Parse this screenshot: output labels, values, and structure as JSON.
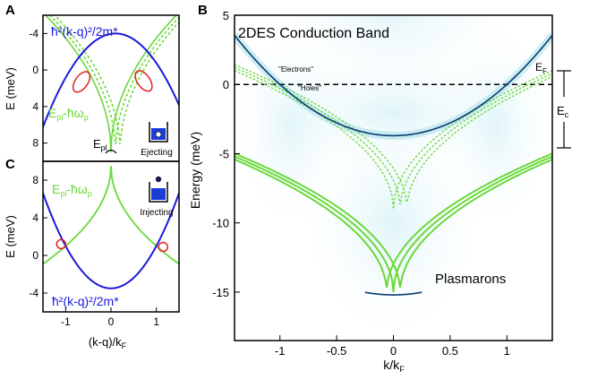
{
  "figure": {
    "panelA": {
      "letter": "A",
      "ylabel": "E (meV)",
      "yticks": [
        "-4",
        "0",
        "4",
        "8"
      ],
      "parabola_label": "ħ²(k-q)²/2m*",
      "plasmon_label": "E",
      "plasmon_sub_pl": "pl",
      "plasmon_label_mid": "-ħω",
      "plasmon_sub_p": "p",
      "epl_label": "E",
      "epl_sub": "pl",
      "inset_label": "Ejecting"
    },
    "panelC": {
      "letter": "C",
      "ylabel": "E (meV)",
      "yticks": [
        "8",
        "4",
        "0",
        "-4"
      ],
      "xticks": [
        "-1",
        "0",
        "1"
      ],
      "xlabel": "(k-q)/k",
      "xlabel_sub": "F",
      "parabola_label": "ħ²(k-q)²/2m*",
      "plasmon_label": "E",
      "plasmon_sub_pl": "pl",
      "plasmon_label_mid": "-ħω",
      "plasmon_sub_p": "p",
      "inset_label": "Injecting"
    },
    "panelB": {
      "letter": "B",
      "title": "2DES Conduction Band",
      "ylabel": "Energy (meV)",
      "yticks": [
        "5",
        "0",
        "-5",
        "-10",
        "-15"
      ],
      "xticks": [
        "-1",
        "-0.5",
        "0",
        "0.5",
        "1"
      ],
      "xlabel": "k/k",
      "xlabel_sub": "F",
      "electrons_label": "\"Electrons\"",
      "holes_label": "\"Holes\"",
      "ef_label": "E",
      "ef_sub": "F",
      "ec_label": "E",
      "ec_sub": "c",
      "plasmarons_label": "Plasmarons"
    }
  },
  "colors": {
    "parabola": "#1a1adc",
    "plasmon": "#6ad83a",
    "circle": "#e02020",
    "band": "#0a3a70",
    "glow": "#9fdde8",
    "inset_fill": "#1a3cd8"
  },
  "chart_data": [
    {
      "type": "line",
      "panel": "A",
      "ylabel": "E (meV)",
      "ylim": [
        10,
        -6
      ],
      "xlim": [
        -1.5,
        1.5
      ],
      "series": [
        {
          "name": "ħ²(k-q)²/2m*",
          "function": "E = 4(x-q)^2 - 4",
          "q": 0.1
        },
        {
          "name": "Epl-ħωp (solid)",
          "function": "E = 9 - 12.5*sqrt(|x|)"
        },
        {
          "name": "Epl-ħωp (dashed)",
          "shifts": [
            0.1,
            0.2
          ]
        }
      ],
      "crossings_marked": 2
    },
    {
      "type": "line",
      "panel": "C",
      "ylabel": "E (meV)",
      "xlabel": "(k-q)/kF",
      "ylim": [
        -6,
        10
      ],
      "xlim": [
        -1.5,
        1.5
      ],
      "xticks": [
        -1,
        0,
        1
      ],
      "yticks": [
        8,
        4,
        0,
        -4
      ],
      "series": [
        {
          "name": "ħ²(k-q)²/2m*",
          "function": "E = 4.5x^2 - 3.5"
        },
        {
          "name": "Epl-ħωp",
          "function": "E = 9.5 - 8.5*sqrt(|x|)"
        }
      ],
      "crossings_marked": 2
    },
    {
      "type": "line",
      "panel": "B",
      "title": "2DES Conduction Band",
      "xlabel": "k/kF",
      "ylabel": "Energy (meV)",
      "xlim": [
        -1.4,
        1.4
      ],
      "ylim": [
        -18.5,
        5
      ],
      "xticks": [
        -1,
        -0.5,
        0,
        0.5,
        1
      ],
      "yticks": [
        5,
        0,
        -5,
        -10,
        -15
      ],
      "fermi_level": 0,
      "series": [
        {
          "name": "conduction band",
          "function": "E = 3.7x^2 - 3.7"
        },
        {
          "name": "plasmon branches (dashed)",
          "vertex_y": -9,
          "top_y": 1.0,
          "offsets": [
            0,
            0.06,
            0.12
          ]
        },
        {
          "name": "plasmaron branches",
          "vertex_y": -15,
          "top_y": -5.2,
          "offsets": [
            -0.06,
            0,
            0.06
          ]
        },
        {
          "name": "plasmaron band",
          "function": "E = 3x^2 - 15.2",
          "xrange": [
            -0.25,
            0.25
          ]
        }
      ],
      "annotations": [
        "\"Electrons\"",
        "\"Holes\"",
        "EF",
        "Ec",
        "Plasmarons"
      ]
    }
  ]
}
